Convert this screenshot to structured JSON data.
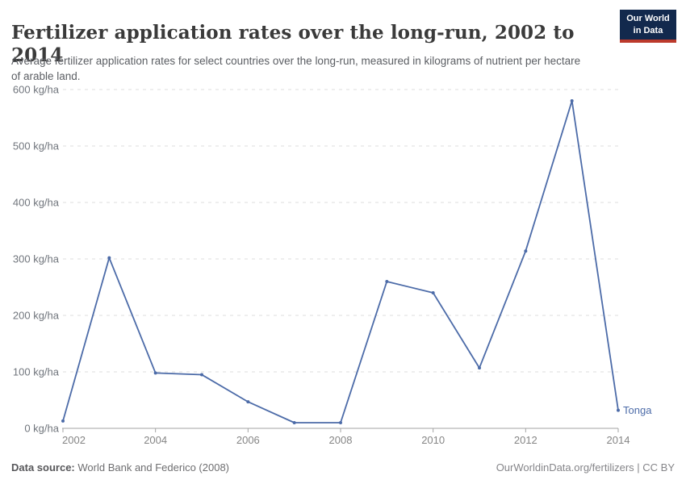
{
  "header": {
    "title": "Fertilizer application rates over the long-run, 2002 to 2014",
    "subtitle": "Average fertilizer application rates for select countries over the long-run, measured in kilograms of nutrient per hectare of arable land.",
    "logo": {
      "line1": "Our World",
      "line2": "in Data",
      "bg_color": "#12294d",
      "accent_color": "#bc3a2c"
    }
  },
  "chart_data": {
    "type": "line",
    "title": "Fertilizer application rates over the long-run, 2002 to 2014",
    "xlabel": "",
    "ylabel": "kg/ha",
    "xlim": [
      2002,
      2014
    ],
    "ylim": [
      0,
      600
    ],
    "x_ticks": [
      2002,
      2004,
      2006,
      2008,
      2010,
      2012,
      2014
    ],
    "y_ticks": [
      0,
      100,
      200,
      300,
      400,
      500,
      600
    ],
    "y_tick_suffix": " kg/ha",
    "grid": "horizontal-dashed",
    "legend": "end-of-line-label",
    "x": [
      2002,
      2003,
      2004,
      2005,
      2006,
      2007,
      2008,
      2009,
      2010,
      2011,
      2012,
      2013,
      2014
    ],
    "series": [
      {
        "name": "Tonga",
        "color": "#4c6ba8",
        "values": [
          13,
          302,
          98,
          95,
          47,
          10,
          10,
          260,
          240,
          107,
          314,
          580,
          32
        ]
      }
    ]
  },
  "footer": {
    "source_label": "Data source:",
    "source_value": "World Bank and Federico (2008)",
    "credit": "OurWorldinData.org/fertilizers | CC BY"
  }
}
